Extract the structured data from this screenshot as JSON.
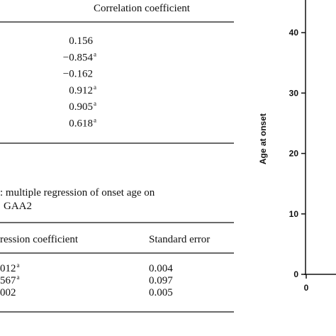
{
  "correlation_table": {
    "header": "Correlation coefficient",
    "rows": [
      {
        "value": "0.156"
      },
      {
        "value": "−0.854",
        "note": "a"
      },
      {
        "value": "−0.162"
      },
      {
        "value": "0.912",
        "note": "a"
      },
      {
        "value": "0.905",
        "note": "a"
      },
      {
        "value": "0.618",
        "note": "a"
      }
    ]
  },
  "regression_caption": [
    ": multiple regression of onset age on",
    "GAA2"
  ],
  "regression_table": {
    "headers": [
      "ression coefficient",
      "Standard error"
    ],
    "rows": [
      [
        {
          "value": "012",
          "note": "a"
        },
        "0.004"
      ],
      [
        {
          "value": "567",
          "note": "a"
        },
        "0.097"
      ],
      [
        {
          "value": "002"
        },
        "0.005"
      ]
    ]
  },
  "figure": {
    "y_label": "Age at onset",
    "ylim": [
      0,
      45.4
    ],
    "yticks": [
      0,
      10,
      20,
      30,
      40
    ],
    "xticks": [
      0
    ]
  }
}
